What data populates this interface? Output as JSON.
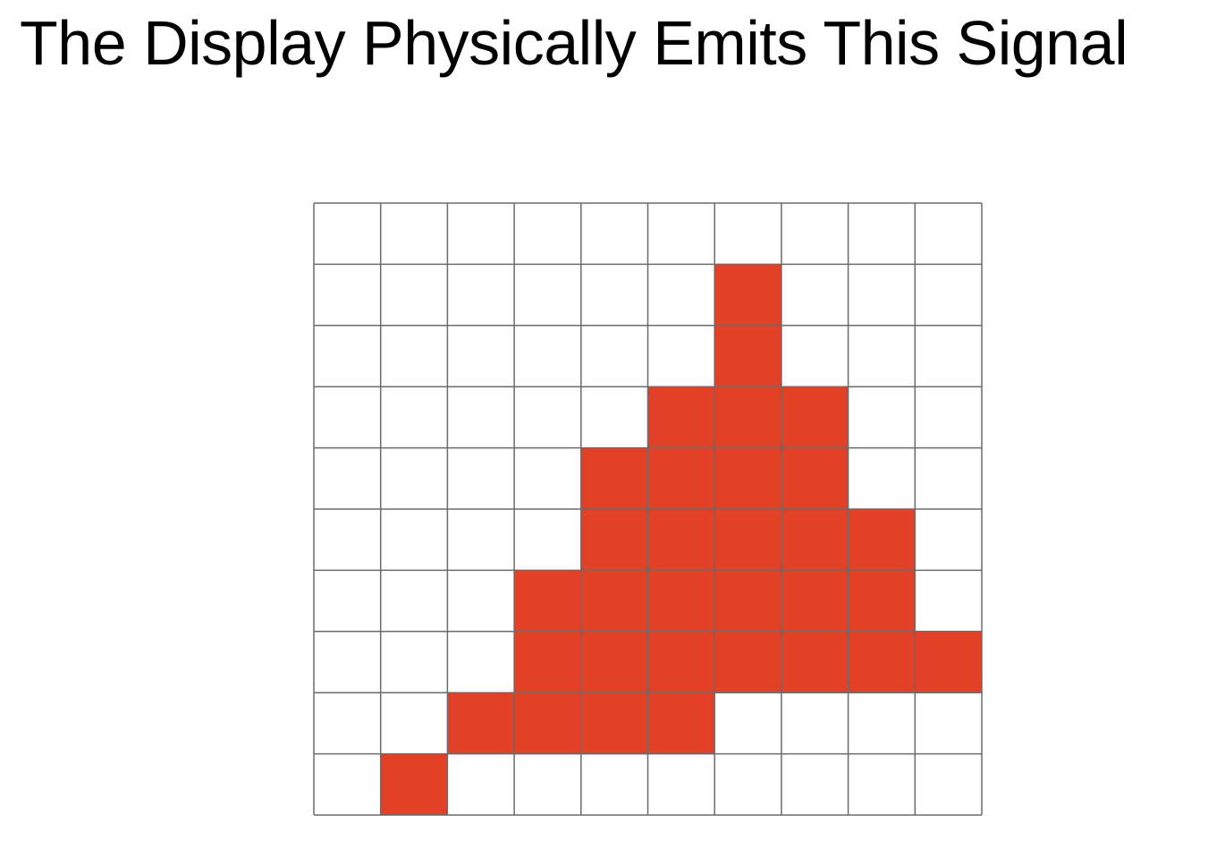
{
  "slide": {
    "title": "The Display Physically Emits This Signal"
  },
  "grid": {
    "columns": 10,
    "rows": 10,
    "fill_color": "#e24128",
    "line_color": "#6b6b6b",
    "background_color": "#ffffff",
    "filled_rows": [
      [],
      [
        6
      ],
      [
        6
      ],
      [
        5,
        6,
        7
      ],
      [
        4,
        5,
        6,
        7
      ],
      [
        4,
        5,
        6,
        7,
        8
      ],
      [
        3,
        4,
        5,
        6,
        7,
        8
      ],
      [
        3,
        4,
        5,
        6,
        7,
        8,
        9
      ],
      [
        2,
        3,
        4,
        5
      ],
      [
        1
      ]
    ]
  }
}
